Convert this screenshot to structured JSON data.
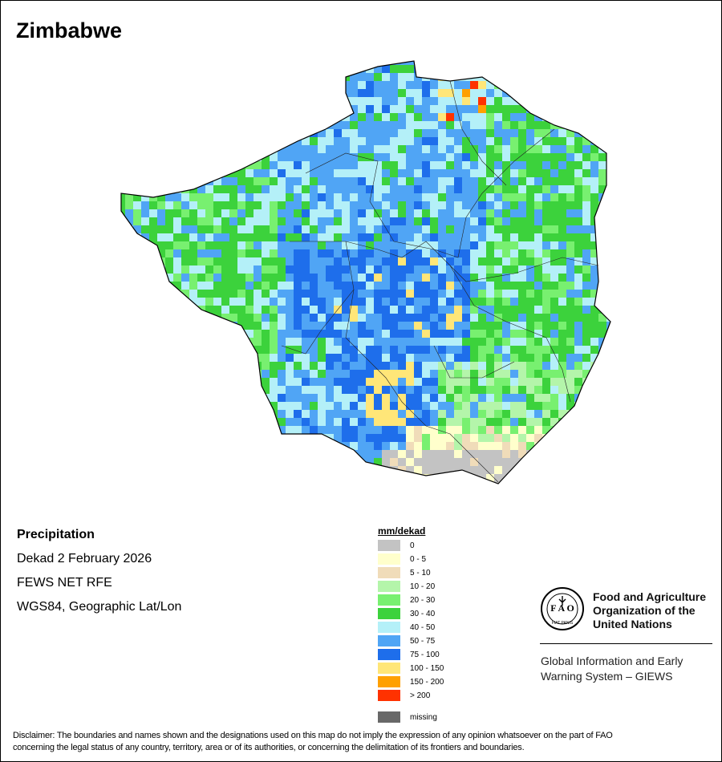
{
  "title": "Zimbabwe",
  "info": {
    "variable": "Precipitation",
    "period": "Dekad 2 February 2026",
    "source": "FEWS NET RFE",
    "projection": "WGS84, Geographic Lat/Lon"
  },
  "legend": {
    "title": "mm/dekad",
    "items": [
      {
        "label": "0",
        "color": "#c3c3c3"
      },
      {
        "label": "0 - 5",
        "color": "#ffffcc"
      },
      {
        "label": "5 - 10",
        "color": "#f0dcb9"
      },
      {
        "label": "10 - 20",
        "color": "#b4f5aa"
      },
      {
        "label": "20 - 30",
        "color": "#78f070"
      },
      {
        "label": "30 - 40",
        "color": "#3cd23c"
      },
      {
        "label": "40 - 50",
        "color": "#b4f0f8"
      },
      {
        "label": "50 - 75",
        "color": "#50a5f5"
      },
      {
        "label": "75 - 100",
        "color": "#1e6eeb"
      },
      {
        "label": "100 - 150",
        "color": "#ffe678"
      },
      {
        "label": "150 - 200",
        "color": "#ffa000"
      },
      {
        "label": "> 200",
        "color": "#ff3200"
      }
    ],
    "missing": {
      "label": "missing",
      "color": "#686868"
    }
  },
  "logo": {
    "org_line1": "Food and Agriculture",
    "org_line2": "Organization of the",
    "org_line3": "United Nations",
    "system_line1": "Global Information and Early",
    "system_line2": "Warning System – GIEWS",
    "mark_text": "FAO",
    "motto": "FIAT PANIS"
  },
  "disclaimer_line1": "Disclaimer: The boundaries and names shown and the designations used on this map do not imply the expression of any opinion whatsoever on the part of FAO",
  "disclaimer_line2": "concerning the legal status of any country, territory, area or of its authorities, or concerning the delimitation of its frontiers and boundaries."
}
